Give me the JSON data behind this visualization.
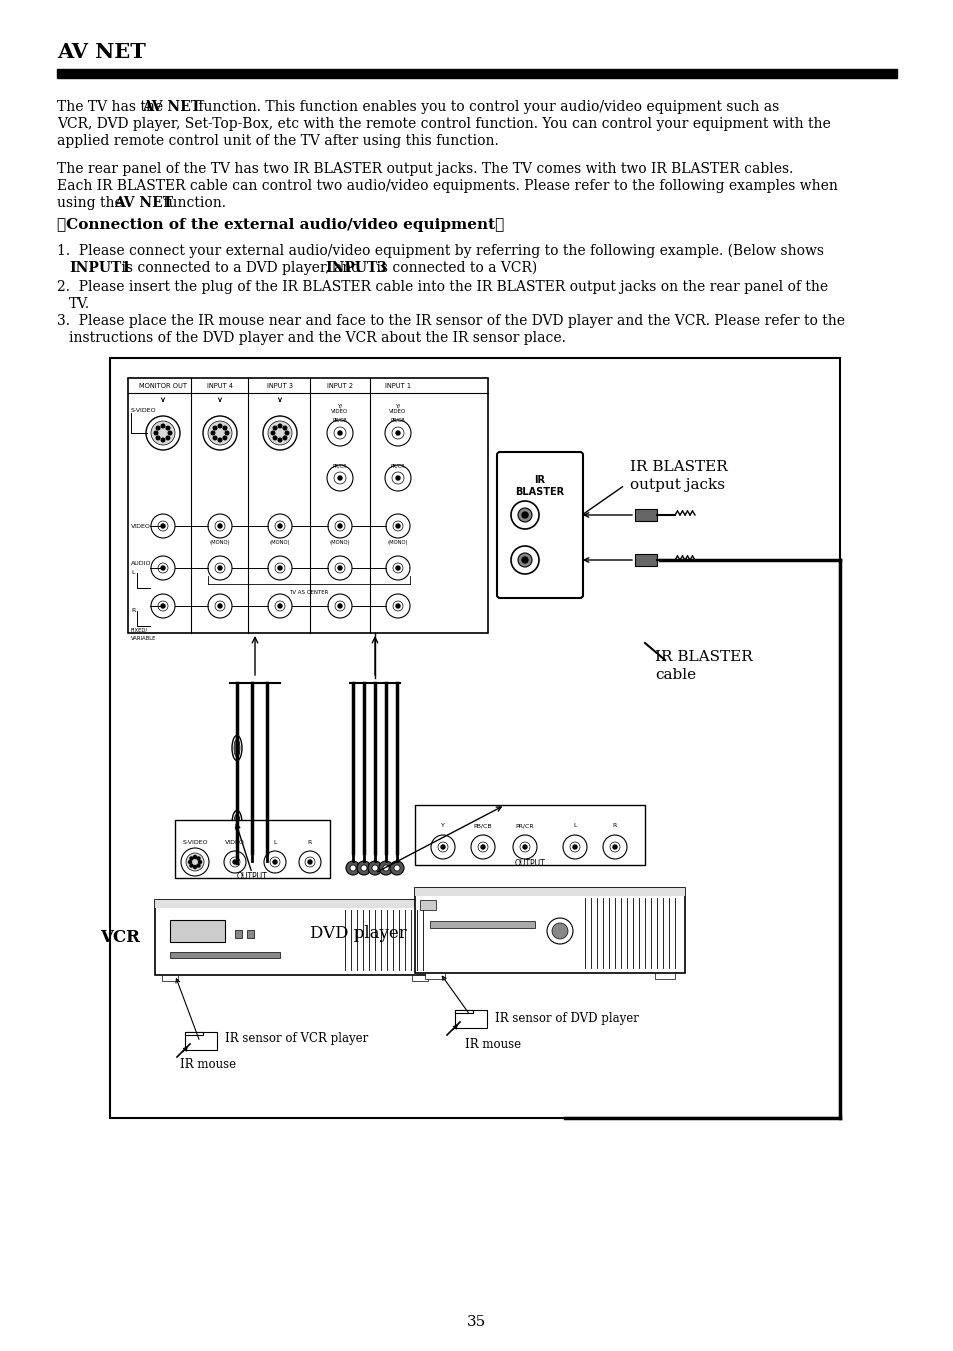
{
  "bg_color": "#ffffff",
  "text_color": "#000000",
  "page_number": "35",
  "title": "AV NET",
  "para1_parts": [
    [
      "normal",
      "The TV has the "
    ],
    [
      "bold",
      "AV NET"
    ],
    [
      "normal",
      " function. This function enables you to control your audio/video equipment such as\nVCR, DVD player, Set-Top-Box, etc with the remote control function. You can control your equipment with the\napplied remote control unit of the TV after using this function."
    ]
  ],
  "para2_parts": [
    [
      "normal",
      "The rear panel of the TV has two IR BLASTER output jacks. The TV comes with two IR BLASTER cables.\nEach IR BLASTER cable can control two audio/video equipments. Please refer to the following examples when\nusing the "
    ],
    [
      "bold",
      "AV NET"
    ],
    [
      "normal",
      " function."
    ]
  ],
  "section_header": "「Connection of the external audio/video equipment」",
  "item1_line1": "1.  Please connect your external audio/video equipment by referring to the following example. (Below shows",
  "item1_line2_parts": [
    [
      "normal",
      "     "
    ],
    [
      "bold",
      "INPUT1"
    ],
    [
      "normal",
      " is connected to a DVD player, and "
    ],
    [
      "bold",
      "INPUT3"
    ],
    [
      "normal",
      " is connected to a VCR)"
    ]
  ],
  "item2_line1": "2.  Please insert the plug of the IR BLASTER cable into the IR BLASTER output jacks on the rear panel of the",
  "item2_line2": "     TV.",
  "item3_line1": "3.  Please place the IR mouse near and face to the IR sensor of the DVD player and the VCR. Please refer to the",
  "item3_line2": "     instructions of the DVD player and the VCR about the IR sensor place.",
  "label_ir_blaster_output": "IR BLASTER\noutput jacks",
  "label_ir_blaster_cable": "IR BLASTER\ncable",
  "label_vcr": "VCR",
  "label_dvd": "DVD player",
  "label_ir_sensor_dvd": "IR sensor of DVD player",
  "label_ir_sensor_vcr": "IR sensor of VCR player",
  "label_ir_mouse1": "IR mouse",
  "label_ir_mouse2": "IR mouse"
}
